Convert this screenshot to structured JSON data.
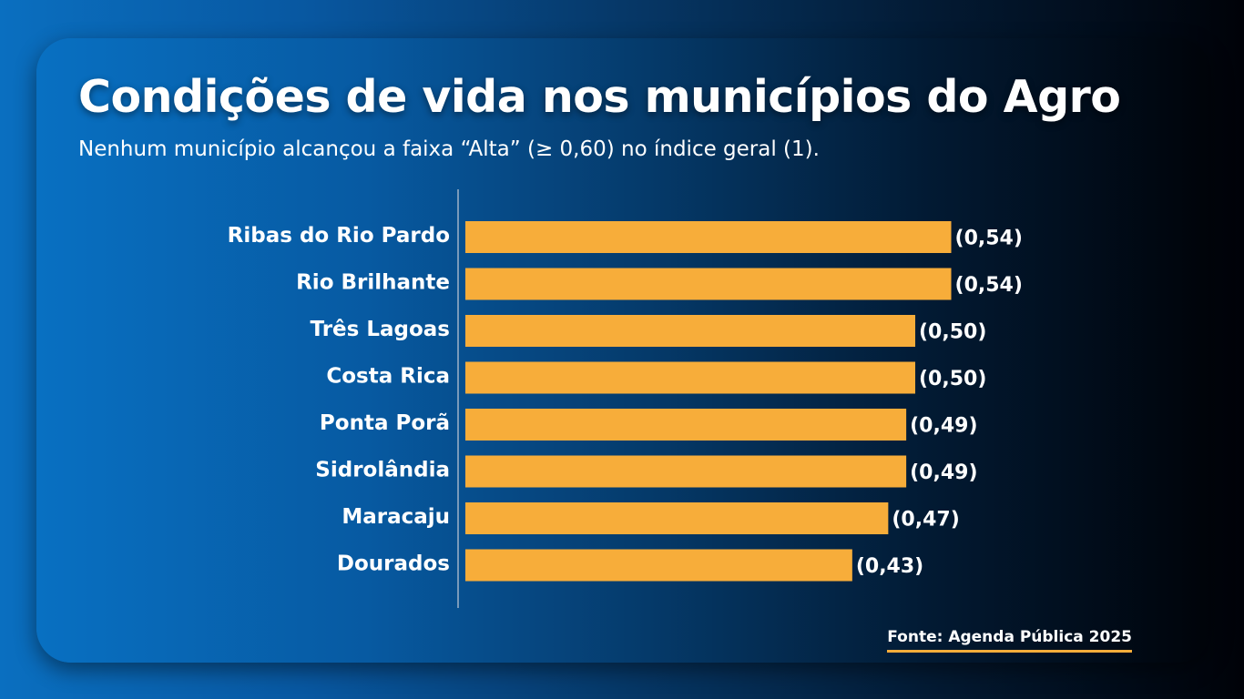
{
  "header": {
    "title": "Condições de vida nos municípios do Agro",
    "subtitle": "Nenhum município alcançou a faixa “Alta” (≥ 0,60) no índice geral (1)."
  },
  "footer": {
    "source": "Fonte: Agenda Pública 2025"
  },
  "colors": {
    "bar": "#f7ad3a",
    "text": "#ffffff",
    "axis": "#9fb3c8"
  },
  "chart_data": {
    "type": "bar",
    "orientation": "horizontal",
    "title": "Condições de vida nos municípios do Agro",
    "subtitle": "Nenhum município alcançou a faixa “Alta” (≥ 0,60) no índice geral (1).",
    "categories": [
      "Ribas do Rio Pardo",
      "Rio Brilhante",
      "Três Lagoas",
      "Costa Rica",
      "Ponta Porã",
      "Sidrolândia",
      "Maracaju",
      "Dourados"
    ],
    "values": [
      0.54,
      0.54,
      0.5,
      0.5,
      0.49,
      0.49,
      0.47,
      0.43
    ],
    "value_labels": [
      "(0,54)",
      "(0,54)",
      "(0,50)",
      "(0,50)",
      "(0,49)",
      "(0,49)",
      "(0,47)",
      "(0,43)"
    ],
    "xlabel": "",
    "ylabel": "",
    "grid": false,
    "legend": "none"
  }
}
